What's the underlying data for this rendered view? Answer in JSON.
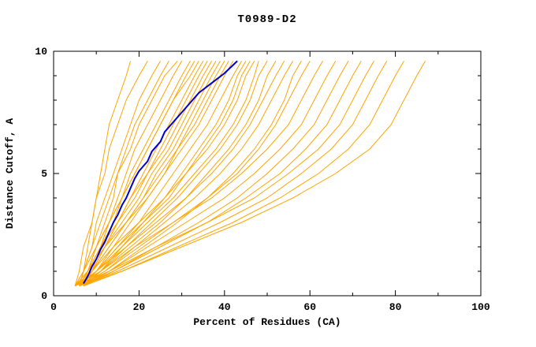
{
  "chart_data": {
    "type": "line",
    "title": "T0989-D2",
    "xlabel": "Percent of Residues (CA)",
    "ylabel": "Distance Cutoff, A",
    "xlim": [
      0,
      100
    ],
    "ylim": [
      0,
      10
    ],
    "x_major_ticks": [
      0,
      20,
      40,
      60,
      80,
      100
    ],
    "x_minor_ticks": [
      10,
      30,
      50,
      70,
      90
    ],
    "y_major_ticks": [
      0,
      5,
      10
    ],
    "y_minor_ticks": [
      1,
      2,
      3,
      4,
      6,
      7,
      8,
      9
    ],
    "grid": false,
    "legend": "none",
    "colors": {
      "model_lines": "#ffa500",
      "highlight_line": "#0000cd",
      "axis": "#000000",
      "background": "#ffffff"
    },
    "y_levels": [
      0.4,
      1,
      2,
      3,
      4,
      5,
      6,
      7,
      8,
      9,
      9.6
    ],
    "orange_series_x": [
      [
        6,
        7,
        8,
        9,
        10,
        11,
        12,
        13,
        15,
        17,
        18
      ],
      [
        5,
        6,
        7,
        9,
        10,
        12,
        13,
        15,
        17,
        20,
        22
      ],
      [
        6,
        7,
        9,
        10,
        12,
        14,
        16,
        18,
        20,
        23,
        25
      ],
      [
        7,
        8,
        10,
        12,
        14,
        15,
        17,
        19,
        22,
        25,
        27
      ],
      [
        5,
        7,
        9,
        11,
        13,
        15,
        18,
        20,
        23,
        26,
        29
      ],
      [
        6,
        8,
        10,
        13,
        15,
        17,
        19,
        22,
        25,
        28,
        30
      ],
      [
        7,
        9,
        11,
        13,
        16,
        18,
        21,
        24,
        27,
        30,
        32
      ],
      [
        6,
        8,
        11,
        14,
        16,
        19,
        22,
        25,
        28,
        31,
        33
      ],
      [
        5,
        7,
        10,
        13,
        16,
        19,
        22,
        25,
        28,
        32,
        34
      ],
      [
        6,
        9,
        12,
        15,
        18,
        21,
        24,
        27,
        30,
        33,
        35
      ],
      [
        7,
        9,
        12,
        15,
        18,
        22,
        25,
        28,
        31,
        34,
        36
      ],
      [
        6,
        8,
        11,
        15,
        19,
        22,
        26,
        29,
        32,
        35,
        37
      ],
      [
        5,
        8,
        12,
        16,
        20,
        23,
        27,
        30,
        33,
        36,
        38
      ],
      [
        6,
        9,
        13,
        17,
        21,
        24,
        28,
        31,
        34,
        37,
        39
      ],
      [
        7,
        10,
        14,
        18,
        22,
        26,
        29,
        32,
        35,
        38,
        40
      ],
      [
        6,
        9,
        13,
        17,
        21,
        25,
        29,
        33,
        36,
        39,
        41
      ],
      [
        5,
        8,
        12,
        17,
        22,
        26,
        30,
        34,
        37,
        40,
        42
      ],
      [
        6,
        10,
        15,
        20,
        24,
        28,
        32,
        36,
        39,
        42,
        44
      ],
      [
        7,
        11,
        16,
        21,
        26,
        30,
        34,
        38,
        41,
        43,
        45
      ],
      [
        6,
        10,
        15,
        21,
        27,
        31,
        35,
        39,
        42,
        44,
        46
      ],
      [
        5,
        9,
        14,
        20,
        26,
        31,
        36,
        40,
        43,
        45,
        47
      ],
      [
        6,
        10,
        16,
        22,
        28,
        33,
        38,
        42,
        45,
        47,
        48
      ],
      [
        7,
        11,
        17,
        23,
        29,
        34,
        39,
        43,
        46,
        48,
        50
      ],
      [
        6,
        11,
        18,
        25,
        31,
        36,
        41,
        45,
        48,
        50,
        52
      ],
      [
        5,
        10,
        17,
        24,
        31,
        37,
        42,
        46,
        49,
        52,
        54
      ],
      [
        6,
        12,
        19,
        26,
        33,
        39,
        44,
        48,
        51,
        54,
        56
      ],
      [
        7,
        13,
        21,
        29,
        36,
        42,
        47,
        51,
        54,
        56,
        58
      ],
      [
        6,
        12,
        20,
        28,
        36,
        43,
        48,
        52,
        55,
        58,
        60
      ],
      [
        5,
        11,
        19,
        28,
        37,
        44,
        50,
        55,
        58,
        61,
        63
      ],
      [
        6,
        13,
        22,
        31,
        40,
        47,
        53,
        58,
        61,
        64,
        66
      ],
      [
        7,
        14,
        24,
        34,
        43,
        50,
        56,
        61,
        64,
        67,
        69
      ],
      [
        6,
        14,
        25,
        36,
        45,
        53,
        59,
        64,
        67,
        70,
        72
      ],
      [
        5,
        13,
        24,
        36,
        47,
        55,
        62,
        67,
        70,
        73,
        75
      ],
      [
        6,
        15,
        27,
        39,
        50,
        58,
        65,
        70,
        73,
        76,
        78
      ],
      [
        7,
        16,
        29,
        42,
        53,
        62,
        69,
        74,
        77,
        80,
        82
      ],
      [
        6,
        16,
        30,
        44,
        56,
        66,
        74,
        79,
        82,
        85,
        87
      ]
    ],
    "blue_series": {
      "x": [
        7,
        8,
        9,
        10,
        11,
        12,
        13,
        14,
        15,
        16,
        17,
        18,
        19,
        20,
        22,
        23,
        25,
        26,
        28,
        30,
        32,
        34,
        37,
        40,
        43
      ],
      "y": [
        0.5,
        0.8,
        1.2,
        1.5,
        1.9,
        2.2,
        2.6,
        3.0,
        3.3,
        3.7,
        4.0,
        4.4,
        4.8,
        5.1,
        5.5,
        5.9,
        6.3,
        6.7,
        7.1,
        7.5,
        7.9,
        8.3,
        8.7,
        9.1,
        9.6
      ]
    }
  }
}
